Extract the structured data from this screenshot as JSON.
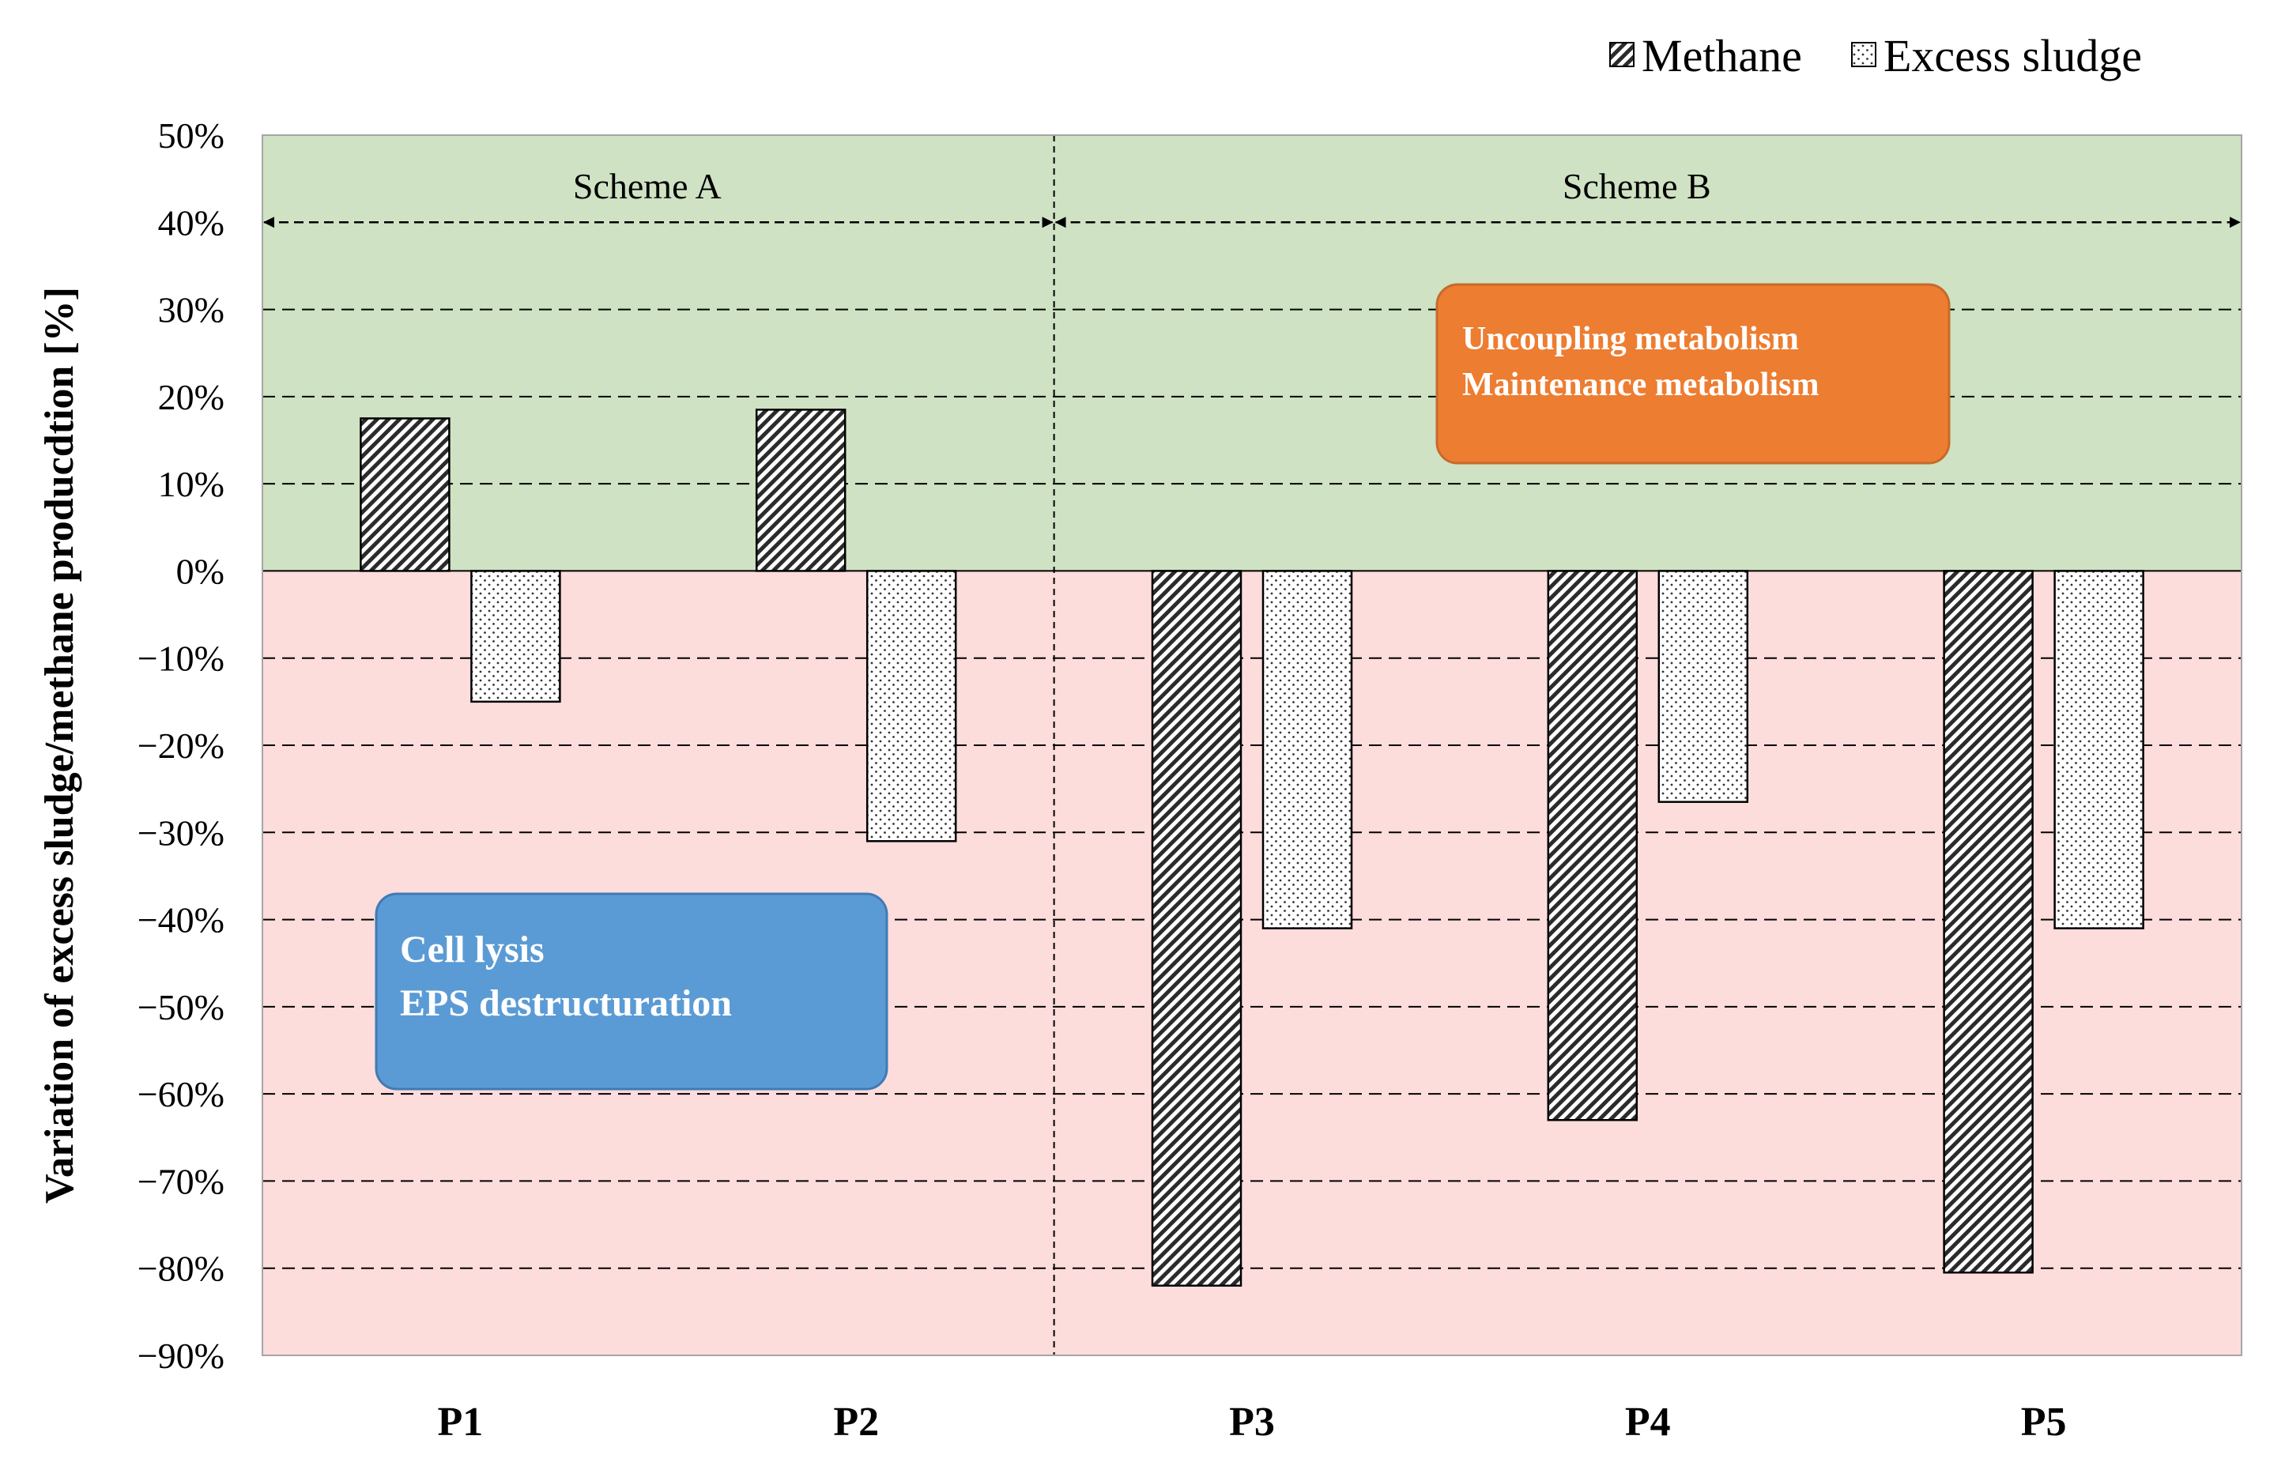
{
  "chart_data": {
    "type": "bar",
    "title": "",
    "xlabel": "",
    "ylabel": "Variation of excess sludge/methane producdtion [%]",
    "ylim": [
      -90,
      50
    ],
    "ytick_step": 10,
    "yticks": [
      "50%",
      "40%",
      "30%",
      "20%",
      "10%",
      "0%",
      "−10%",
      "−20%",
      "−30%",
      "−40%",
      "−50%",
      "−60%",
      "−70%",
      "−80%",
      "−90%"
    ],
    "grid": "dashed horizontal",
    "categories": [
      "P1",
      "P2",
      "P3",
      "P4",
      "P5"
    ],
    "series": [
      {
        "name": "Methane",
        "pattern": "diagonal-hatch",
        "values": [
          17.5,
          18.5,
          -82,
          -63,
          -80.5
        ]
      },
      {
        "name": "Excess sludge",
        "pattern": "dots",
        "values": [
          -15,
          -31,
          -41,
          -26.5,
          -41
        ]
      }
    ],
    "legend": {
      "placement": "top-right",
      "items": [
        "Methane",
        "Excess sludge"
      ]
    },
    "regions": [
      {
        "name": "positive",
        "from": 0,
        "to": 50,
        "color": "#cfe2c3"
      },
      {
        "name": "negative",
        "from": -90,
        "to": 0,
        "color": "#fddcdc"
      }
    ],
    "schemes": [
      {
        "label": "Scheme A",
        "categories": [
          "P1",
          "P2"
        ]
      },
      {
        "label": "Scheme B",
        "categories": [
          "P3",
          "P4",
          "P5"
        ]
      }
    ],
    "annotations": [
      {
        "lines": [
          "Uncoupling metabolism",
          "Maintenance metabolism"
        ],
        "color": "#ed7d31"
      },
      {
        "lines": [
          "Cell lysis",
          "EPS destructuration"
        ],
        "color": "#5b9bd5"
      }
    ]
  }
}
